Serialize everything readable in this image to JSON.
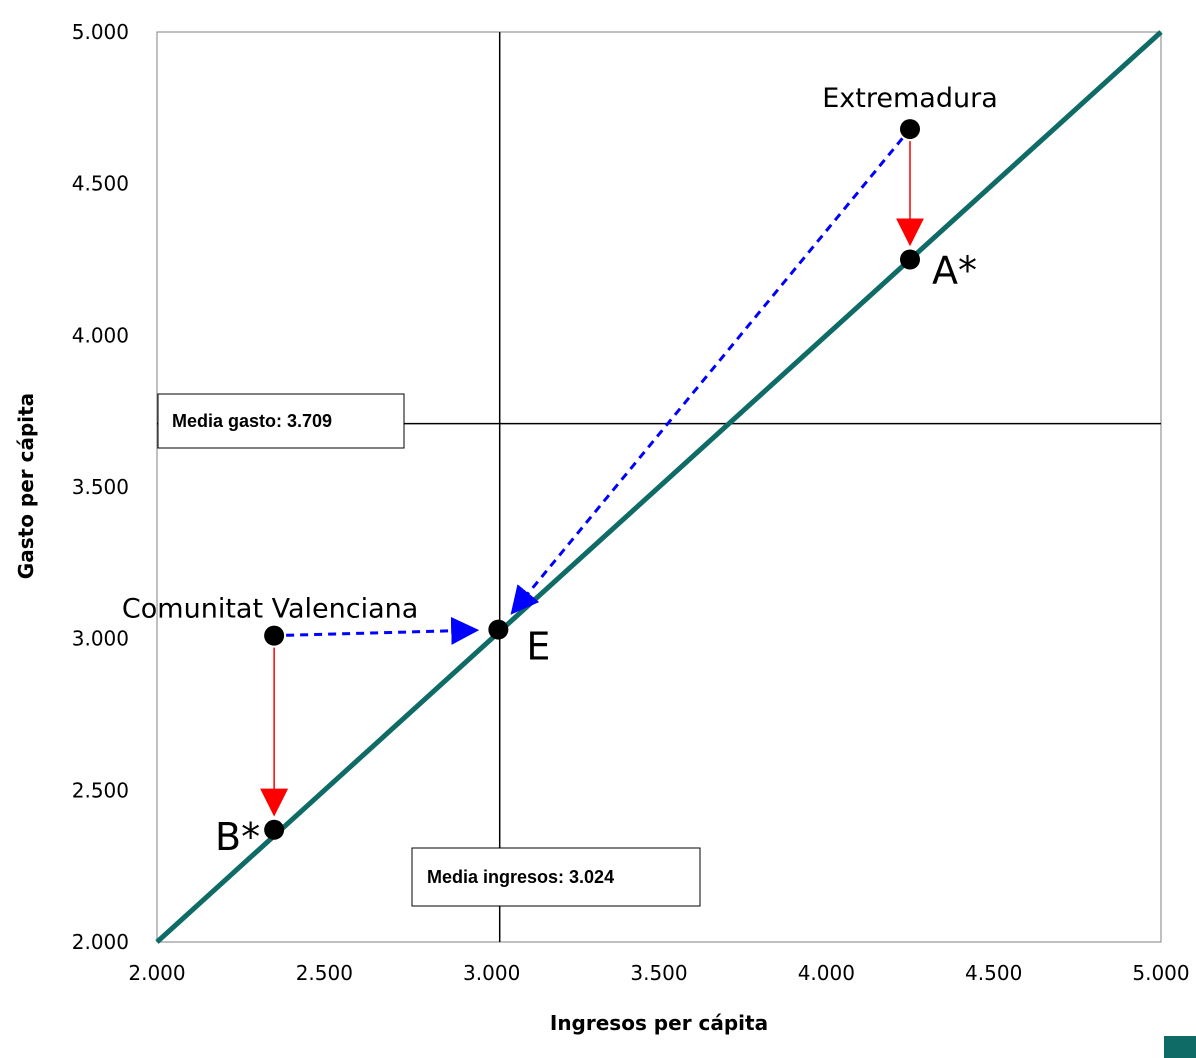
{
  "chart_data": {
    "type": "scatter",
    "xlabel": "Ingresos per cápita",
    "ylabel": "Gasto per cápita",
    "xlim": [
      2000,
      5000
    ],
    "ylim": [
      2000,
      5000
    ],
    "x_ticks": [
      "2.000",
      "2.500",
      "3.000",
      "3.500",
      "4.000",
      "4.500",
      "5.000"
    ],
    "y_ticks": [
      "2.000",
      "2.500",
      "3.000",
      "3.500",
      "4.000",
      "4.500",
      "5.000"
    ],
    "grid": false,
    "diagonal": {
      "from": [
        2000,
        2000
      ],
      "to": [
        5000,
        5000
      ],
      "color": "#0f6b66"
    },
    "mean_lines": {
      "x": {
        "value": 3024,
        "label": "Media ingresos: 3.024"
      },
      "y": {
        "value": 3709,
        "label": "Media gasto: 3.709"
      }
    },
    "points": [
      {
        "id": "extremadura",
        "label": "Extremadura",
        "x": 4250,
        "y": 4680
      },
      {
        "id": "a-star",
        "label": "A*",
        "x": 4250,
        "y": 4250
      },
      {
        "id": "e",
        "label": "E",
        "x": 3020,
        "y": 3030
      },
      {
        "id": "comunitat-valenciana",
        "label": "Comunitat Valenciana",
        "x": 2350,
        "y": 3010
      },
      {
        "id": "b-star",
        "label": "B*",
        "x": 2350,
        "y": 2370
      }
    ],
    "arrows": [
      {
        "from": "extremadura",
        "to": "a-star",
        "style": "solid",
        "color": "#ff0000"
      },
      {
        "from": "comunitat-valenciana",
        "to": "b-star",
        "style": "solid",
        "color": "#ff0000"
      },
      {
        "from": "extremadura",
        "to": "e",
        "style": "dashed",
        "color": "#0000ff"
      },
      {
        "from": "comunitat-valenciana",
        "to": "e",
        "style": "dashed",
        "color": "#0000ff"
      }
    ]
  },
  "colors": {
    "diagonal": "#0f6b66",
    "red_arrow": "#ff0000",
    "blue_arrow": "#0000ff",
    "point": "#000000",
    "plot_border": "#808080",
    "legend_swatch": "#0f6b66"
  }
}
